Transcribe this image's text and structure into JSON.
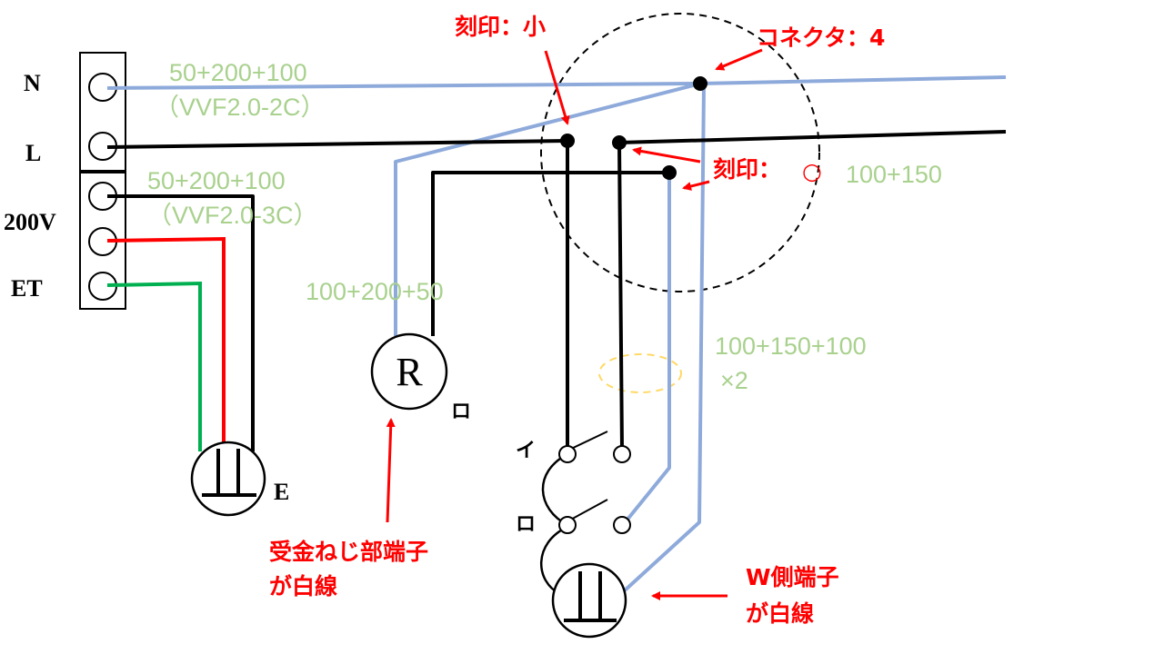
{
  "terminal_block": {
    "labels": [
      "N",
      "L",
      "200V",
      "ET"
    ]
  },
  "wire_specs": {
    "n_l_run": "50+200+100",
    "n_l_cable": "（VVF2.0-2C）",
    "power_200v_run": "50+200+100",
    "power_200v_cable": "（VVF2.0-3C）",
    "lamp_run": "100+200+50",
    "switch_run": "100+150+100",
    "switch_run_count": "×2",
    "outlet_run": "100+150"
  },
  "annotations": {
    "stamp_small": "刻印：小",
    "connector": "コネクタ：4",
    "stamp_prefix": "刻印：",
    "stamp_mark": "○",
    "lamp_terminal_line1": "受金ねじ部端子",
    "lamp_terminal_line2": "が白線",
    "outlet_terminal_line1": "W側端子",
    "outlet_terminal_line2": "が白線"
  },
  "symbols": {
    "lamp_letter": "R",
    "lamp_suffix": "ロ",
    "earth_outlet_suffix": "E",
    "switch_i": "イ",
    "switch_ro": "ロ"
  },
  "colors": {
    "white_wire": "#8eaadb",
    "black_wire": "#000000",
    "red_wire": "#ff0000",
    "green_wire": "#00b050",
    "annotation": "#ff0000",
    "spec_text": "#a9d18e",
    "ring_connector_mark": "#ffd966"
  }
}
